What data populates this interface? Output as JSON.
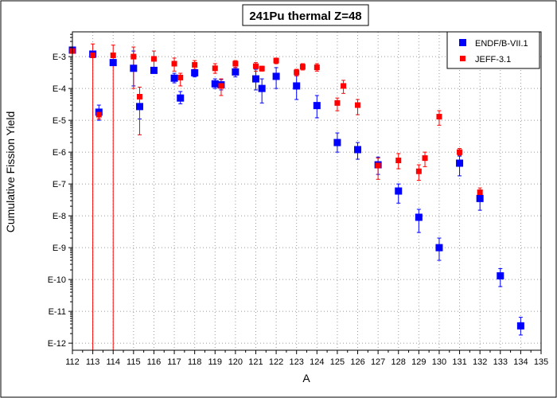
{
  "chart_data": {
    "type": "scatter",
    "title": "241Pu thermal Z=48",
    "xlabel": "A",
    "ylabel": "Cumulative Fission Yield",
    "x_ticks": [
      112,
      113,
      114,
      115,
      116,
      117,
      118,
      119,
      120,
      121,
      122,
      123,
      124,
      125,
      126,
      127,
      128,
      129,
      130,
      131,
      132,
      133,
      134,
      135
    ],
    "xlim": [
      112,
      135
    ],
    "yscale": "log",
    "ylim": [
      6e-13,
      0.006
    ],
    "y_ticks": [
      {
        "value": 0.001,
        "label": "E-3"
      },
      {
        "value": 0.0001,
        "label": "E-4"
      },
      {
        "value": 1e-05,
        "label": "E-5"
      },
      {
        "value": 1e-06,
        "label": "E-6"
      },
      {
        "value": 1e-07,
        "label": "E-7"
      },
      {
        "value": 1e-08,
        "label": "E-8"
      },
      {
        "value": 1e-09,
        "label": "E-9"
      },
      {
        "value": 1e-10,
        "label": "E-10"
      },
      {
        "value": 1e-11,
        "label": "E-11"
      },
      {
        "value": 1e-12,
        "label": "E-12"
      }
    ],
    "grid": true,
    "legend_position": "top-right",
    "series": [
      {
        "name": "ENDF/B-VII.1",
        "color": "#0000ff",
        "marker": "square",
        "points": [
          {
            "x": 112.0,
            "y": 0.0016
          },
          {
            "x": 113.0,
            "y": 0.0012
          },
          {
            "x": 113.3,
            "y": 1.8e-05,
            "lo": 1e-05,
            "hi": 3e-05
          },
          {
            "x": 114.0,
            "y": 0.00065
          },
          {
            "x": 115.0,
            "y": 0.00043,
            "lo": 0.00012,
            "hi": 0.0015
          },
          {
            "x": 115.3,
            "y": 2.7e-05,
            "lo": 1.1e-05,
            "hi": 5e-05
          },
          {
            "x": 116.0,
            "y": 0.00037,
            "lo": 0.0003,
            "hi": 0.00043
          },
          {
            "x": 117.0,
            "y": 0.00021,
            "lo": 0.00015,
            "hi": 0.0003
          },
          {
            "x": 117.3,
            "y": 5e-05,
            "lo": 3.3e-05,
            "hi": 8e-05
          },
          {
            "x": 118.0,
            "y": 0.00031,
            "lo": 0.00023,
            "hi": 0.0004
          },
          {
            "x": 119.0,
            "y": 0.00014,
            "lo": 0.0001,
            "hi": 0.0002
          },
          {
            "x": 119.3,
            "y": 0.00013,
            "lo": 9e-05,
            "hi": 0.00019
          },
          {
            "x": 120.0,
            "y": 0.00033,
            "lo": 0.00023,
            "hi": 0.00046
          },
          {
            "x": 121.0,
            "y": 0.0002,
            "lo": 9e-05,
            "hi": 0.0004
          },
          {
            "x": 121.3,
            "y": 0.0001,
            "lo": 3.5e-05,
            "hi": 0.0002
          },
          {
            "x": 122.0,
            "y": 0.00024,
            "lo": 0.0001,
            "hi": 0.00045
          },
          {
            "x": 123.0,
            "y": 0.00012,
            "lo": 4.5e-05,
            "hi": 0.00025
          },
          {
            "x": 124.0,
            "y": 2.9e-05,
            "lo": 1.2e-05,
            "hi": 6e-05
          },
          {
            "x": 125.0,
            "y": 2e-06,
            "lo": 1e-06,
            "hi": 4e-06
          },
          {
            "x": 126.0,
            "y": 1.2e-06,
            "lo": 6e-07,
            "hi": 2e-06
          },
          {
            "x": 127.0,
            "y": 4e-07,
            "lo": 2e-07,
            "hi": 7e-07
          },
          {
            "x": 128.0,
            "y": 6e-08,
            "lo": 2.5e-08,
            "hi": 1e-07
          },
          {
            "x": 129.0,
            "y": 9e-09,
            "lo": 3e-09,
            "hi": 1.6e-08
          },
          {
            "x": 130.0,
            "y": 1e-09,
            "lo": 4e-10,
            "hi": 2e-09
          },
          {
            "x": 131.0,
            "y": 4.5e-07,
            "lo": 1.8e-07,
            "hi": 7.5e-07
          },
          {
            "x": 132.0,
            "y": 3.5e-08,
            "lo": 1.5e-08,
            "hi": 6e-08
          },
          {
            "x": 133.0,
            "y": 1.3e-10,
            "lo": 6e-11,
            "hi": 2.2e-10
          },
          {
            "x": 134.0,
            "y": 3.5e-12,
            "lo": 1.8e-12,
            "hi": 6.5e-12
          }
        ]
      },
      {
        "name": "JEFF-3.1",
        "color": "#ff0000",
        "marker": "square",
        "points": [
          {
            "x": 112.0,
            "y": 0.0015
          },
          {
            "x": 113.0,
            "y": 0.0011,
            "lo": 5e-13,
            "hi": 0.0025
          },
          {
            "x": 113.3,
            "y": 1.5e-05,
            "lo": 1.1e-05,
            "hi": 2e-05
          },
          {
            "x": 114.0,
            "y": 0.0011,
            "lo": 5e-13,
            "hi": 0.0023
          },
          {
            "x": 115.0,
            "y": 0.001,
            "lo": 0.0001,
            "hi": 0.002
          },
          {
            "x": 115.3,
            "y": 5.5e-05,
            "lo": 3.5e-06,
            "hi": 0.00011
          },
          {
            "x": 116.0,
            "y": 0.00085,
            "lo": 0.00035,
            "hi": 0.0015
          },
          {
            "x": 117.0,
            "y": 0.0006,
            "lo": 0.00035,
            "hi": 0.0009
          },
          {
            "x": 117.3,
            "y": 0.00022,
            "lo": 0.00012,
            "hi": 0.0003
          },
          {
            "x": 118.0,
            "y": 0.00055,
            "lo": 0.0004,
            "hi": 0.00075
          },
          {
            "x": 119.0,
            "y": 0.00043,
            "lo": 0.0003,
            "hi": 0.0006
          },
          {
            "x": 119.3,
            "y": 0.00012,
            "lo": 6e-05,
            "hi": 0.0002
          },
          {
            "x": 120.0,
            "y": 0.0006,
            "lo": 0.00045,
            "hi": 0.00075
          },
          {
            "x": 121.0,
            "y": 0.0005,
            "lo": 0.00035,
            "hi": 0.00065
          },
          {
            "x": 121.3,
            "y": 0.00042,
            "lo": 0.00035,
            "hi": 0.0005
          },
          {
            "x": 122.0,
            "y": 0.00075,
            "lo": 0.0006,
            "hi": 0.0009
          },
          {
            "x": 123.0,
            "y": 0.00032,
            "lo": 0.00025,
            "hi": 0.0004
          },
          {
            "x": 123.3,
            "y": 0.00048,
            "lo": 0.00038,
            "hi": 0.0006
          },
          {
            "x": 124.0,
            "y": 0.00046,
            "lo": 0.00035,
            "hi": 0.0006
          },
          {
            "x": 125.0,
            "y": 3.5e-05,
            "lo": 2e-05,
            "hi": 5e-05
          },
          {
            "x": 125.3,
            "y": 0.00012,
            "lo": 7e-05,
            "hi": 0.00018
          },
          {
            "x": 126.0,
            "y": 3e-05,
            "lo": 1.5e-05,
            "hi": 4.5e-05
          },
          {
            "x": 127.0,
            "y": 3.8e-07,
            "lo": 1.4e-07,
            "hi": 6.5e-07
          },
          {
            "x": 128.0,
            "y": 5.5e-07,
            "lo": 3e-07,
            "hi": 9e-07
          },
          {
            "x": 129.0,
            "y": 2.5e-07,
            "lo": 1.3e-07,
            "hi": 4e-07
          },
          {
            "x": 129.3,
            "y": 6.5e-07,
            "lo": 3.5e-07,
            "hi": 1e-06
          },
          {
            "x": 130.0,
            "y": 1.3e-05,
            "lo": 7e-06,
            "hi": 2e-05
          },
          {
            "x": 131.0,
            "y": 1e-06,
            "lo": 8e-07,
            "hi": 1.3e-06
          },
          {
            "x": 132.0,
            "y": 5.5e-08,
            "lo": 4e-08,
            "hi": 7.5e-08
          }
        ]
      }
    ]
  }
}
